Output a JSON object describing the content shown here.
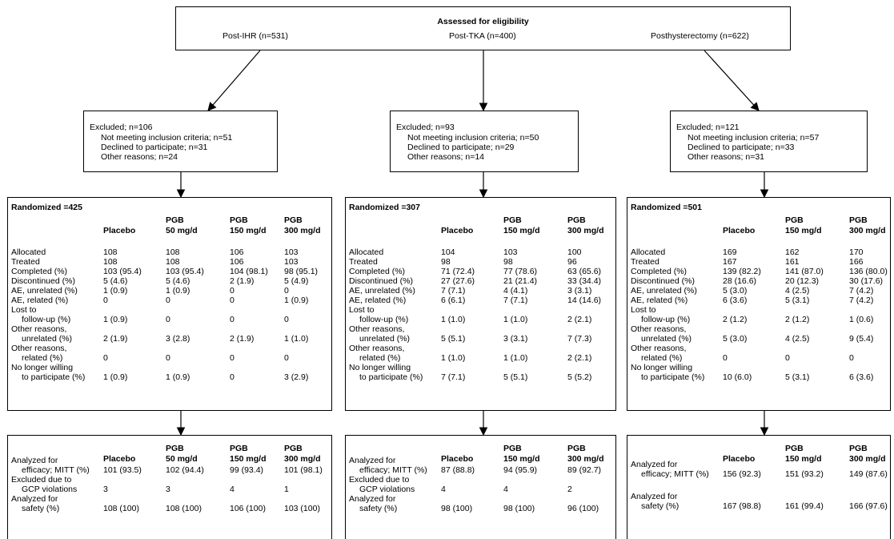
{
  "eligibility": {
    "title": "Assessed for eligibility",
    "groups": [
      "Post-IHR (n=531)",
      "Post-TKA (n=400)",
      "Posthysterectomy (n=622)"
    ]
  },
  "columns": [
    {
      "excluded": {
        "title": "Excluded; n=106",
        "items": [
          "Not meeting inclusion criteria; n=51",
          "Declined to participate; n=31",
          "Other reasons; n=24"
        ]
      },
      "randomized": {
        "title": "Randomized =425",
        "headers": [
          [
            "",
            "Placebo"
          ],
          [
            "PGB",
            "50 mg/d"
          ],
          [
            "PGB",
            "150 mg/d"
          ],
          [
            "PGB",
            "300 mg/d"
          ]
        ],
        "rows": [
          {
            "label": [
              "Allocated"
            ],
            "values": [
              "108",
              "108",
              "106",
              "103"
            ]
          },
          {
            "label": [
              "Treated"
            ],
            "values": [
              "108",
              "108",
              "106",
              "103"
            ]
          },
          {
            "label": [
              "Completed (%)"
            ],
            "values": [
              "103 (95.4)",
              "103 (95.4)",
              "104 (98.1)",
              "98 (95.1)"
            ]
          },
          {
            "label": [
              "Discontinued (%)"
            ],
            "values": [
              "5 (4.6)",
              "5 (4.6)",
              "2 (1.9)",
              "5 (4.9)"
            ]
          },
          {
            "label": [
              "AE, unrelated (%)"
            ],
            "values": [
              "1 (0.9)",
              "1 (0.9)",
              "0",
              "0"
            ]
          },
          {
            "label": [
              "AE, related (%)"
            ],
            "values": [
              "0",
              "0",
              "0",
              "1 (0.9)"
            ]
          },
          {
            "label": [
              "Lost to",
              "follow-up (%)"
            ],
            "values": [
              "1 (0.9)",
              "0",
              "0",
              "0"
            ]
          },
          {
            "label": [
              "Other reasons,",
              "unrelated (%)"
            ],
            "values": [
              "2 (1.9)",
              "3 (2.8)",
              "2 (1.9)",
              "1 (1.0)"
            ]
          },
          {
            "label": [
              "Other reasons,",
              "related (%)"
            ],
            "values": [
              "0",
              "0",
              "0",
              "0"
            ]
          },
          {
            "label": [
              "No longer willing",
              "to participate (%)"
            ],
            "values": [
              "1 (0.9)",
              "1 (0.9)",
              "0",
              "3 (2.9)"
            ]
          }
        ]
      },
      "analysis": {
        "headers": [
          [
            "",
            "Placebo"
          ],
          [
            "PGB",
            "50 mg/d"
          ],
          [
            "PGB",
            "150 mg/d"
          ],
          [
            "PGB",
            "300 mg/d"
          ]
        ],
        "rows": [
          {
            "label": [
              "Analyzed for",
              "efficacy; MITT (%)"
            ],
            "values": [
              "101 (93.5)",
              "102 (94.4)",
              "99 (93.4)",
              "101 (98.1)"
            ]
          },
          {
            "label": [
              "Excluded due to",
              "GCP violations"
            ],
            "values": [
              "3",
              "3",
              "4",
              "1"
            ]
          },
          {
            "label": [
              "Analyzed for",
              "safety (%)"
            ],
            "values": [
              "108 (100)",
              "108 (100)",
              "106 (100)",
              "103 (100)"
            ]
          }
        ]
      }
    },
    {
      "excluded": {
        "title": "Excluded; n=93",
        "items": [
          "Not meeting inclusion criteria; n=50",
          "Declined to  participate; n=29",
          "Other reasons; n=14"
        ]
      },
      "randomized": {
        "title": "Randomized =307",
        "headers": [
          [
            "",
            "Placebo"
          ],
          [
            "PGB",
            "150 mg/d"
          ],
          [
            "PGB",
            "300 mg/d"
          ]
        ],
        "rows": [
          {
            "label": [
              "Allocated"
            ],
            "values": [
              "104",
              "103",
              "100"
            ]
          },
          {
            "label": [
              "Treated"
            ],
            "values": [
              "98",
              "98",
              "96"
            ]
          },
          {
            "label": [
              "Completed (%)"
            ],
            "values": [
              "71 (72.4)",
              "77 (78.6)",
              "63 (65.6)"
            ]
          },
          {
            "label": [
              "Discontinued (%)"
            ],
            "values": [
              "27 (27.6)",
              "21 (21.4)",
              "33 (34.4)"
            ]
          },
          {
            "label": [
              "AE, unrelated (%)"
            ],
            "values": [
              "7 (7.1)",
              "4 (4.1)",
              "3 (3.1)"
            ]
          },
          {
            "label": [
              "AE, related (%)"
            ],
            "values": [
              "6 (6.1)",
              "7 (7.1)",
              "14 (14.6)"
            ]
          },
          {
            "label": [
              "Lost to",
              "follow-up (%)"
            ],
            "values": [
              "1 (1.0)",
              "1 (1.0)",
              "2 (2.1)"
            ]
          },
          {
            "label": [
              "Other reasons,",
              "unrelated (%)"
            ],
            "values": [
              "5 (5.1)",
              "3 (3.1)",
              "7 (7.3)"
            ]
          },
          {
            "label": [
              "Other reasons,",
              "related (%)"
            ],
            "values": [
              "1 (1.0)",
              "1 (1.0)",
              "2 (2.1)"
            ]
          },
          {
            "label": [
              "No longer willing",
              "to participate (%)"
            ],
            "values": [
              "7 (7.1)",
              "5 (5.1)",
              "5 (5.2)"
            ]
          }
        ]
      },
      "analysis": {
        "headers": [
          [
            "",
            "Placebo"
          ],
          [
            "PGB",
            "150 mg/d"
          ],
          [
            "PGB",
            "300 mg/d"
          ]
        ],
        "rows": [
          {
            "label": [
              "Analyzed for",
              "efficacy; MITT (%)"
            ],
            "values": [
              "87 (88.8)",
              "94 (95.9)",
              "89 (92.7)"
            ]
          },
          {
            "label": [
              "Excluded due to",
              "GCP violations"
            ],
            "values": [
              "4",
              "4",
              "2"
            ]
          },
          {
            "label": [
              "Analyzed for",
              "safety (%)"
            ],
            "values": [
              "98 (100)",
              "98 (100)",
              "96 (100)"
            ]
          }
        ]
      }
    },
    {
      "excluded": {
        "title": "Excluded; n=121",
        "items": [
          "Not meeting inclusion criteria; n=57",
          "Declined to  participate; n=33",
          "Other reasons; n=31"
        ]
      },
      "randomized": {
        "title": "Randomized =501",
        "headers": [
          [
            "",
            "Placebo"
          ],
          [
            "PGB",
            "150 mg/d"
          ],
          [
            "PGB",
            "300 mg/d"
          ]
        ],
        "rows": [
          {
            "label": [
              "Allocated"
            ],
            "values": [
              "169",
              "162",
              "170"
            ]
          },
          {
            "label": [
              "Treated"
            ],
            "values": [
              "167",
              "161",
              "166"
            ]
          },
          {
            "label": [
              "Completed (%)"
            ],
            "values": [
              "139 (82.2)",
              "141 (87.0)",
              "136 (80.0)"
            ]
          },
          {
            "label": [
              "Discontinued (%)"
            ],
            "values": [
              "28 (16.6)",
              "20 (12.3)",
              "30 (17.6)"
            ]
          },
          {
            "label": [
              "AE, unrelated (%)"
            ],
            "values": [
              "5 (3.0)",
              "4 (2.5)",
              "7 (4.2)"
            ]
          },
          {
            "label": [
              "AE, related (%)"
            ],
            "values": [
              "6 (3.6)",
              "5 (3.1)",
              "7 (4.2)"
            ]
          },
          {
            "label": [
              "Lost to",
              "follow-up (%)"
            ],
            "values": [
              "2 (1.2)",
              "2 (1.2)",
              "1 (0.6)"
            ]
          },
          {
            "label": [
              "Other reasons,",
              "unrelated (%)"
            ],
            "values": [
              "5 (3.0)",
              "4 (2.5)",
              "9 (5.4)"
            ]
          },
          {
            "label": [
              "Other reasons,",
              "related (%)"
            ],
            "values": [
              "0",
              "0",
              "0"
            ]
          },
          {
            "label": [
              "No longer willing",
              "to participate (%)"
            ],
            "values": [
              "10 (6.0)",
              "5 (3.1)",
              "6 (3.6)"
            ]
          }
        ]
      },
      "analysis": {
        "headers": [
          [
            "",
            "Placebo"
          ],
          [
            "PGB",
            "150 mg/d"
          ],
          [
            "PGB",
            "300 mg/d"
          ]
        ],
        "rows": [
          {
            "label": [
              "Analyzed for",
              "efficacy; MITT (%)"
            ],
            "values": [
              "156 (92.3)",
              "151 (93.2)",
              "149 (87.6)"
            ]
          },
          {
            "label": [
              "Analyzed for",
              "safety (%)"
            ],
            "values": [
              "167 (98.8)",
              "161 (99.4)",
              "166 (97.6)"
            ]
          }
        ]
      }
    }
  ]
}
